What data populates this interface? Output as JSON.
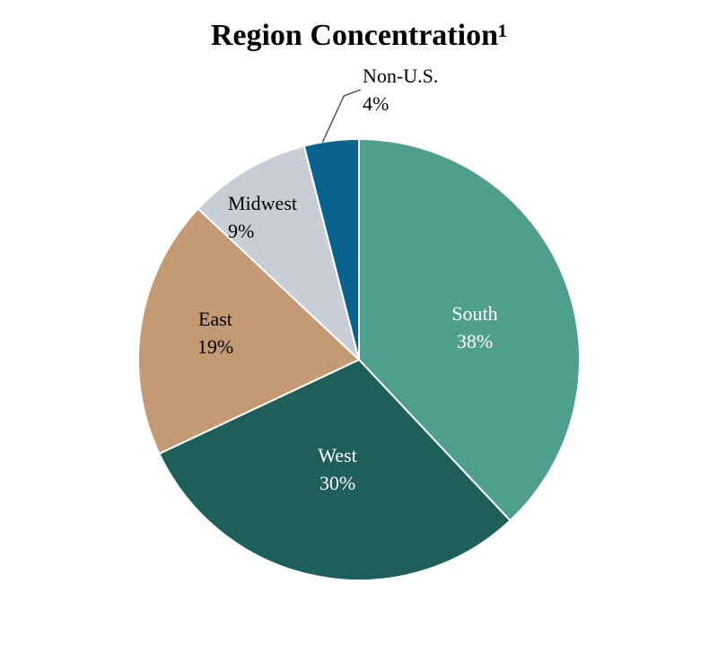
{
  "chart_data": {
    "type": "pie",
    "title": "Region Concentration¹",
    "start_angle_deg": 0,
    "direction": "clockwise",
    "slices": [
      {
        "label": "South",
        "value": 38,
        "value_label": "38%",
        "color": "#4e9f8e",
        "label_color": "#ffffff"
      },
      {
        "label": "West",
        "value": 30,
        "value_label": "30%",
        "color": "#1e5e5b",
        "label_color": "#ffffff"
      },
      {
        "label": "East",
        "value": 19,
        "value_label": "19%",
        "color": "#c49a74",
        "label_color": "#000000"
      },
      {
        "label": "Midwest",
        "value": 9,
        "value_label": "9%",
        "color": "#c9ced6",
        "label_color": "#000000"
      },
      {
        "label": "Non-U.S.",
        "value": 4,
        "value_label": "4%",
        "color": "#08628b",
        "label_color": "#000000"
      }
    ]
  }
}
